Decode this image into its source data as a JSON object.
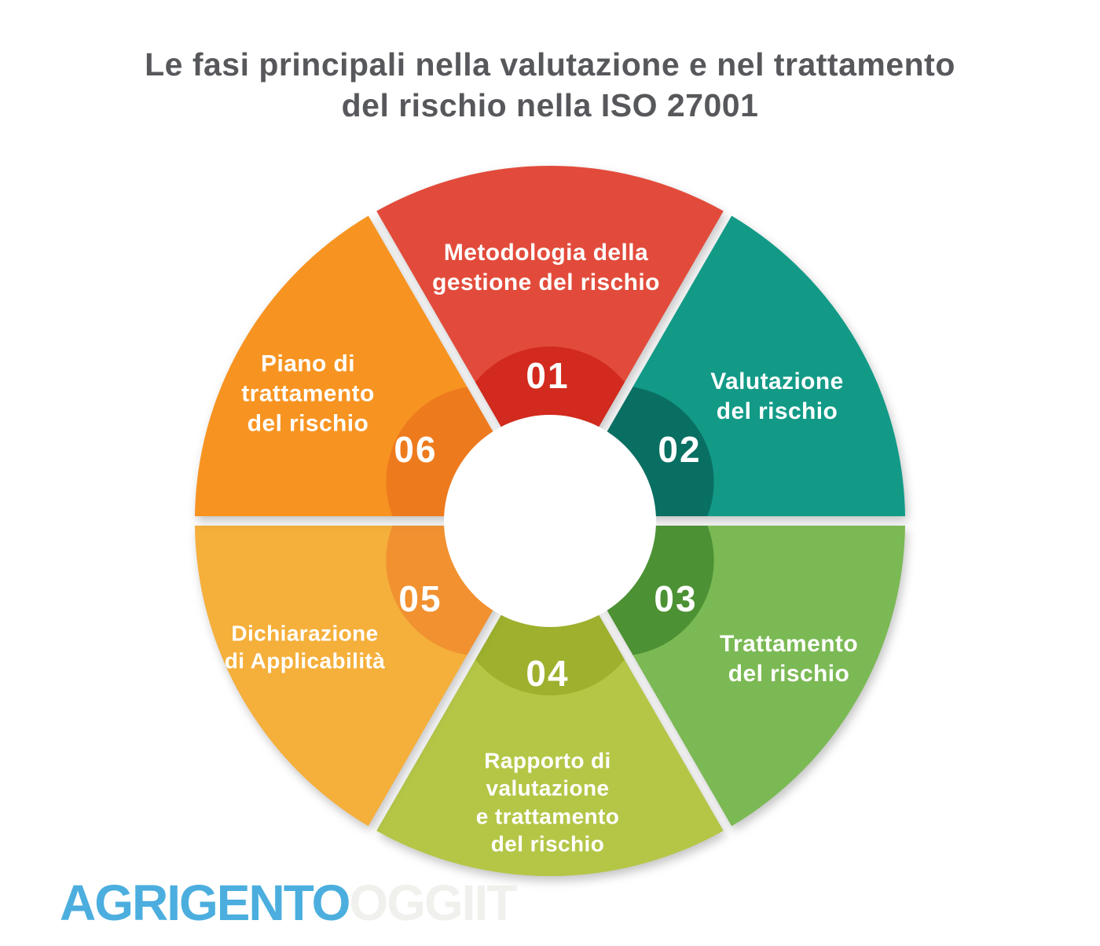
{
  "title": "Le fasi principali nella valutazione e nel trattamento\ndel rischio nella ISO 27001",
  "phases": [
    {
      "number": "01",
      "label": "Metodologia della\ngestione del rischio",
      "color": "#E24B3B",
      "color_dark": "#D22A1E"
    },
    {
      "number": "02",
      "label": "Valutazione\ndel rischio",
      "color": "#129A87",
      "color_dark": "#0A6F63"
    },
    {
      "number": "03",
      "label": "Trattamento\ndel rischio",
      "color": "#7BB954",
      "color_dark": "#4C9134"
    },
    {
      "number": "04",
      "label": "Rapporto di\nvalutazione\ne trattamento\ndel rischio",
      "color": "#B5C647",
      "color_dark": "#9EB02D"
    },
    {
      "number": "05",
      "label": "Dichiarazione\ndi Applicabilità",
      "color": "#F5AF3B",
      "color_dark": "#F19130"
    },
    {
      "number": "06",
      "label": "Piano di\ntrattamento\ndel rischio",
      "color": "#F79421",
      "color_dark": "#EE7A1E"
    }
  ],
  "logo": {
    "primary": "AGRIGENTO",
    "primary_color": "#4BAEDE",
    "secondary": "OGGIIT",
    "secondary_color": "#F0F0ED"
  }
}
